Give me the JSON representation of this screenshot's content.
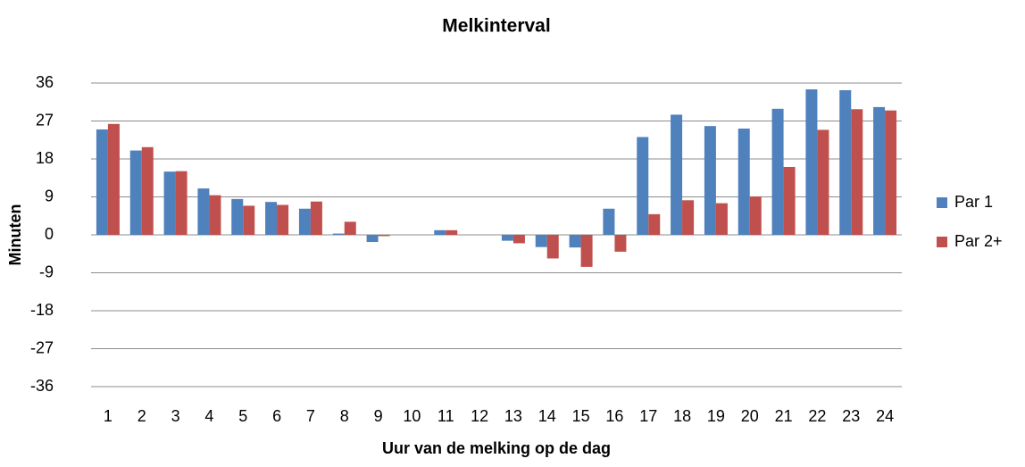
{
  "chart_data": {
    "type": "bar",
    "title": "Melkinterval",
    "x_label": "Uur van de melking op  de dag",
    "y_label": "Minuten",
    "categories": [
      "1",
      "2",
      "3",
      "4",
      "5",
      "6",
      "7",
      "8",
      "9",
      "10",
      "11",
      "12",
      "13",
      "14",
      "15",
      "16",
      "17",
      "18",
      "19",
      "20",
      "21",
      "22",
      "23",
      "24"
    ],
    "series": [
      {
        "name": "Par 1",
        "color": "#4f81bd",
        "values": [
          25,
          20,
          15,
          11,
          8.5,
          7.8,
          6.2,
          0.3,
          -1.7,
          0,
          1.1,
          0,
          -1.4,
          -2.9,
          -3,
          6.2,
          23.2,
          28.5,
          25.8,
          25.2,
          29.9,
          34.5,
          34.3,
          30.3
        ]
      },
      {
        "name": "Par 2+",
        "color": "#c0504d",
        "values": [
          26.3,
          20.8,
          15.1,
          9.4,
          6.9,
          7.1,
          7.9,
          3.1,
          -0.3,
          0,
          1.1,
          0,
          -2,
          -5.6,
          -7.6,
          -4,
          4.9,
          8.2,
          7.5,
          9.1,
          16.1,
          24.9,
          29.8,
          29.5
        ]
      }
    ],
    "ylim": [
      -36,
      36
    ],
    "yticks": [
      -36,
      -27,
      -18,
      -9,
      0,
      9,
      18,
      27,
      36
    ],
    "grid": true,
    "legend": "right"
  }
}
